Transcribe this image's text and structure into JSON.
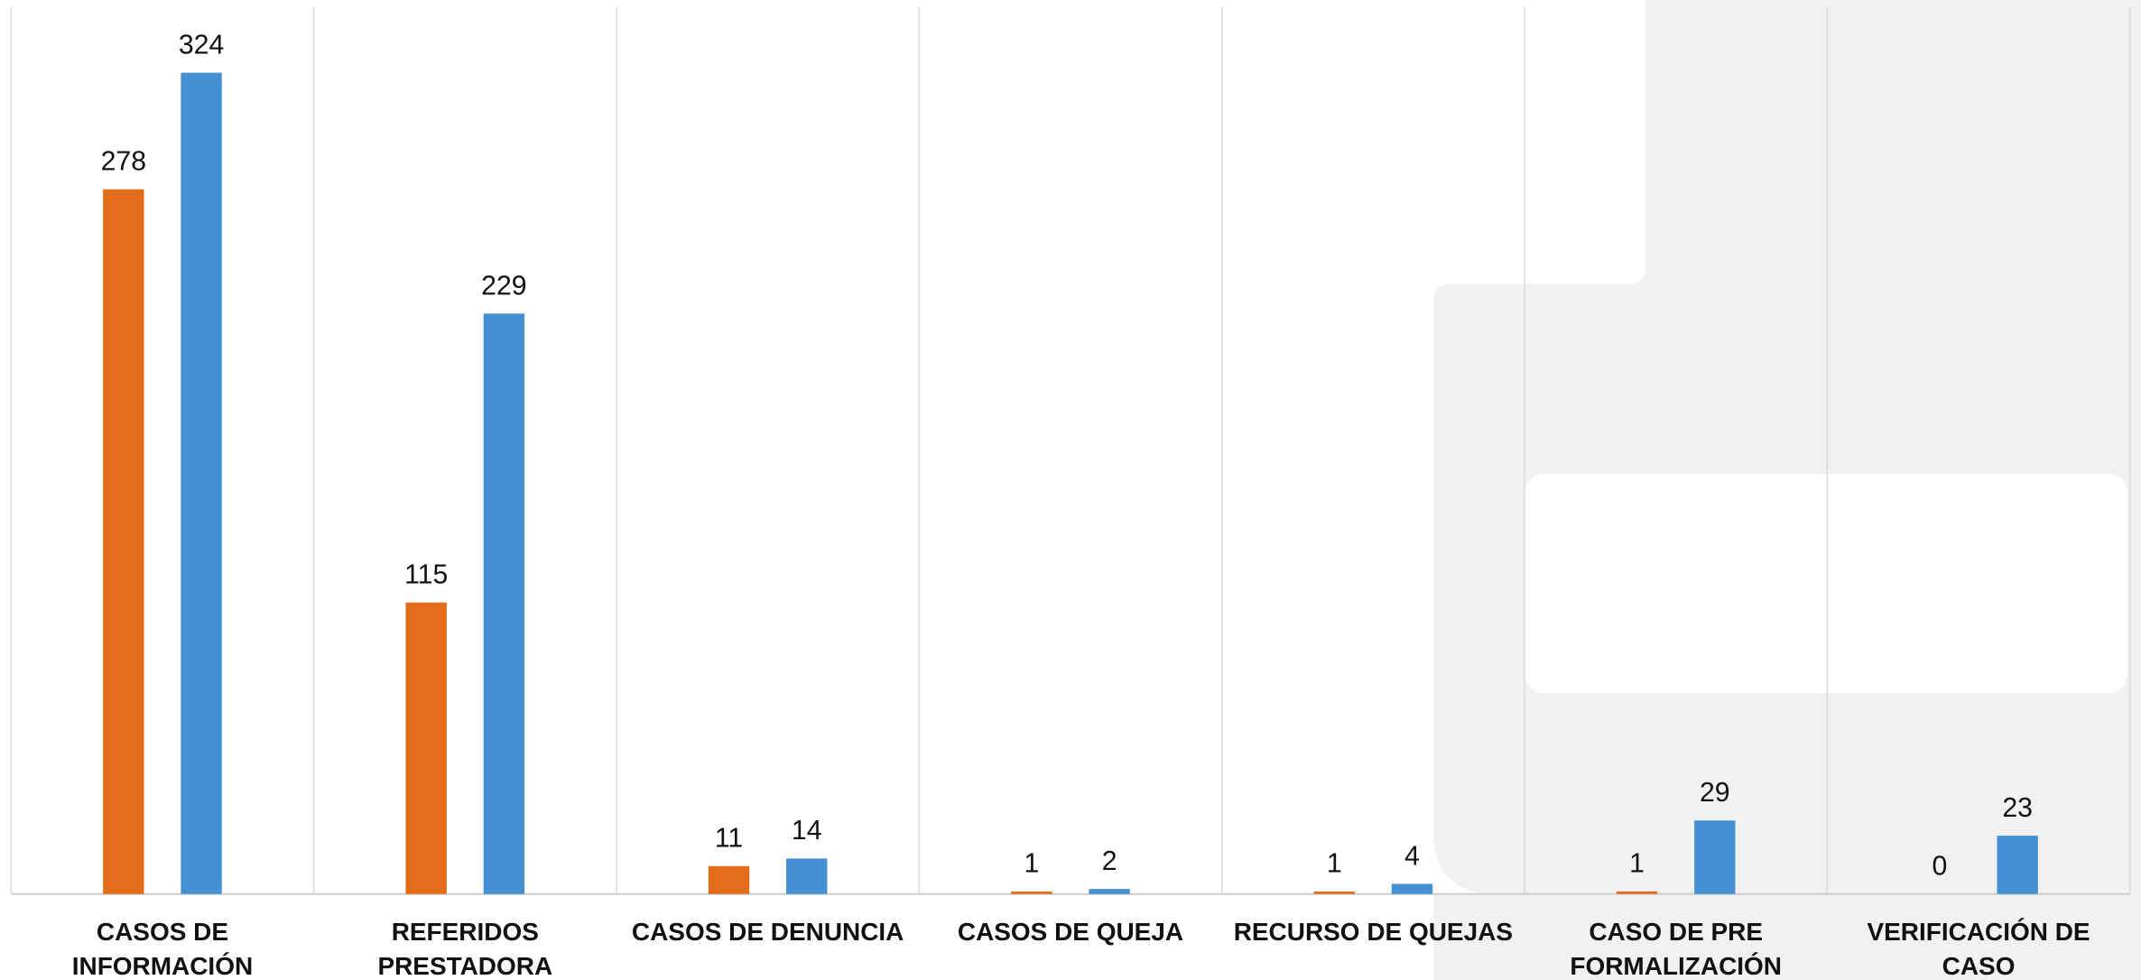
{
  "chart_data": {
    "type": "bar",
    "categories": [
      "CASOS DE INFORMACIÓN",
      "REFERIDOS PRESTADORA",
      "CASOS DE DENUNCIA",
      "CASOS DE QUEJA",
      "RECURSO DE QUEJAS",
      "CASO DE PRE FORMALIZACIÓN",
      "VERIFICACIÓN DE CASO"
    ],
    "series": [
      {
        "color": "#e36c1a",
        "values": [
          278,
          115,
          11,
          1,
          1,
          1,
          0
        ]
      },
      {
        "color": "#4590d3",
        "values": [
          324,
          229,
          14,
          2,
          4,
          29,
          23
        ]
      }
    ],
    "ylim": [
      0,
      350
    ]
  }
}
